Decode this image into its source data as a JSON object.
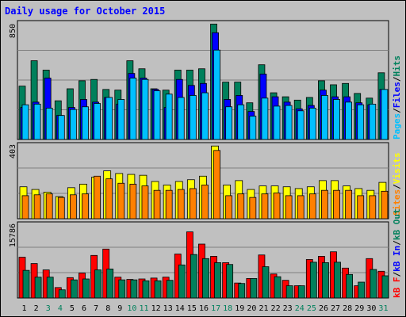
{
  "title": "Daily usage for October 2015",
  "colors": {
    "hits": "#00805c",
    "files": "#0000ff",
    "pages": "#00c0ff",
    "visits": "#ffff00",
    "sites": "#ff8000",
    "kbin": "#00805c",
    "kbout": "#ff0000",
    "weekend_label": "#00805c",
    "weekday_label": "#000000",
    "grid": "#808080"
  },
  "chart_data": [
    {
      "type": "bar",
      "panel": "hits-files-pages",
      "ymax_label": "850",
      "ylim": [
        0,
        850
      ],
      "legend": [
        {
          "name": "Pages",
          "key": "pages"
        },
        {
          "name": "Files",
          "key": "files"
        },
        {
          "name": "Hits",
          "key": "hits"
        }
      ],
      "categories": [
        "1",
        "2",
        "3",
        "4",
        "5",
        "6",
        "7",
        "8",
        "9",
        "10",
        "11",
        "12",
        "13",
        "14",
        "15",
        "16",
        "17",
        "18",
        "19",
        "20",
        "21",
        "22",
        "23",
        "24",
        "25",
        "26",
        "27",
        "28",
        "29",
        "30",
        "31"
      ],
      "series": [
        {
          "name": "Hits",
          "key": "hits",
          "values": [
            400,
            590,
            520,
            290,
            380,
            440,
            450,
            375,
            370,
            590,
            530,
            380,
            370,
            520,
            520,
            530,
            865,
            430,
            430,
            275,
            560,
            350,
            320,
            295,
            315,
            440,
            410,
            420,
            345,
            310,
            500
          ]
        },
        {
          "name": "Files",
          "key": "files",
          "values": [
            240,
            280,
            460,
            180,
            240,
            300,
            280,
            315,
            265,
            495,
            460,
            375,
            240,
            450,
            405,
            420,
            800,
            300,
            330,
            210,
            490,
            320,
            280,
            230,
            255,
            370,
            320,
            320,
            275,
            260,
            375
          ]
        },
        {
          "name": "Pages",
          "key": "pages",
          "values": [
            260,
            265,
            235,
            180,
            225,
            245,
            270,
            315,
            300,
            460,
            450,
            365,
            340,
            315,
            330,
            350,
            670,
            245,
            260,
            175,
            310,
            250,
            255,
            215,
            235,
            330,
            300,
            280,
            260,
            265,
            375
          ]
        }
      ]
    },
    {
      "type": "bar",
      "panel": "visits-sites",
      "ymax_label": "403",
      "ylim": [
        0,
        403
      ],
      "legend": [
        {
          "name": "Sites",
          "key": "sites"
        },
        {
          "name": "Visits",
          "key": "visits"
        }
      ],
      "categories": [
        "1",
        "2",
        "3",
        "4",
        "5",
        "6",
        "7",
        "8",
        "9",
        "10",
        "11",
        "12",
        "13",
        "14",
        "15",
        "16",
        "17",
        "18",
        "19",
        "20",
        "21",
        "22",
        "23",
        "24",
        "25",
        "26",
        "27",
        "28",
        "29",
        "30",
        "31"
      ],
      "series": [
        {
          "name": "Visits",
          "key": "visits",
          "values": [
            180,
            165,
            150,
            125,
            175,
            195,
            235,
            270,
            255,
            250,
            245,
            210,
            190,
            210,
            220,
            240,
            410,
            190,
            215,
            165,
            185,
            185,
            180,
            170,
            180,
            215,
            215,
            185,
            170,
            160,
            205
          ]
        },
        {
          "name": "Sites",
          "key": "sites",
          "values": [
            130,
            135,
            140,
            120,
            135,
            140,
            240,
            225,
            200,
            195,
            185,
            160,
            160,
            165,
            170,
            190,
            385,
            130,
            140,
            120,
            140,
            145,
            130,
            130,
            140,
            160,
            160,
            160,
            130,
            130,
            155
          ]
        }
      ]
    },
    {
      "type": "bar",
      "panel": "kbytes",
      "ymax_label": "15786",
      "ylim": [
        0,
        15786
      ],
      "legend": [
        {
          "name": "kB F",
          "key": "kbout"
        },
        {
          "name": "kB In",
          "key": "kbin"
        },
        {
          "name": "kB Out",
          "key": "kbin"
        }
      ],
      "categories": [
        "1",
        "2",
        "3",
        "4",
        "5",
        "6",
        "7",
        "8",
        "9",
        "10",
        "11",
        "12",
        "13",
        "14",
        "15",
        "16",
        "17",
        "18",
        "19",
        "20",
        "21",
        "22",
        "23",
        "24",
        "25",
        "26",
        "27",
        "28",
        "29",
        "30",
        "31"
      ],
      "series": [
        {
          "name": "kB F",
          "key": "kbout",
          "values": [
            9000,
            7600,
            6200,
            2300,
            4500,
            5500,
            9400,
            10800,
            4600,
            4100,
            4200,
            4400,
            4600,
            9700,
            14600,
            11900,
            9200,
            7800,
            3300,
            4300,
            9500,
            5300,
            3900,
            2700,
            8500,
            9200,
            10200,
            6600,
            2700,
            8700,
            5900
          ]
        },
        {
          "name": "kB In",
          "key": "kbin",
          "values": [
            6100,
            4600,
            4600,
            1800,
            4000,
            4200,
            6200,
            6400,
            4000,
            4000,
            3800,
            3800,
            3900,
            7300,
            9600,
            8700,
            7800,
            7400,
            3200,
            4300,
            6900,
            4700,
            2700,
            2700,
            7900,
            7800,
            7900,
            5200,
            3500,
            6300,
            4900
          ]
        }
      ]
    }
  ],
  "legend_text": {
    "top": {
      "pages": "Pages",
      "files": "Files",
      "hits": "Hits",
      "sep": "/"
    },
    "mid": {
      "sites": "Sites",
      "visits": "Visits",
      "sep": "/"
    },
    "bot": {
      "kbf": "kB F",
      "kbin": "kB In",
      "kbout": "kB Out",
      "sep": "/"
    }
  },
  "weekend_days": [
    3,
    4,
    10,
    11,
    17,
    18,
    24,
    25,
    31
  ]
}
